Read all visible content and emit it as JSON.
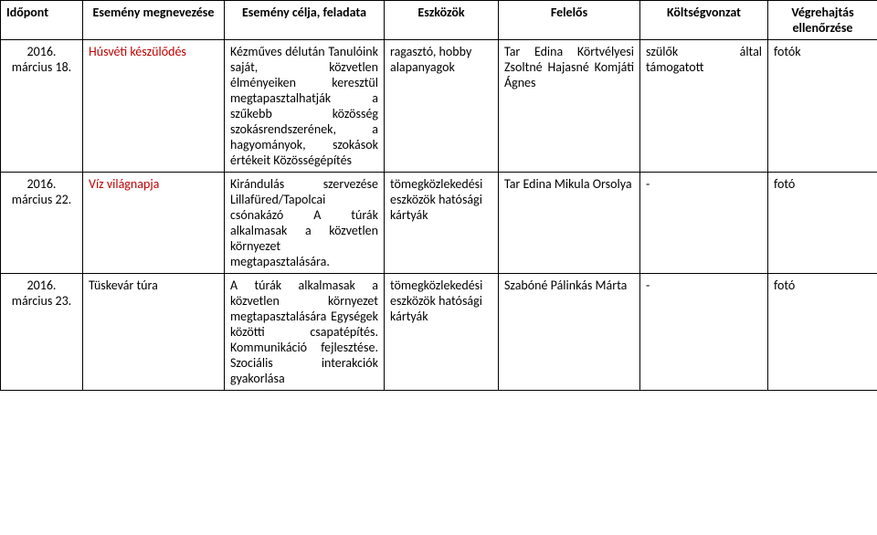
{
  "colors": {
    "red": "#c00000",
    "black": "#000000",
    "background": "#ffffff",
    "border": "#000000"
  },
  "typography": {
    "fontFamily": "Calibri, Arial, sans-serif",
    "fontSize": 14,
    "headerWeight": "bold"
  },
  "headers": {
    "time": "Időpont",
    "name": "Esemény megnevezése",
    "goal": "Esemény célja, feladata",
    "tools": "Eszközök",
    "responsible": "Felelős",
    "cost": "Költségvonzat",
    "check": "Végrehajtás ellenőrzése"
  },
  "rows": [
    {
      "time": "2016. március 18.",
      "name": "Húsvéti készülődés",
      "goal": "Kézműves délután Tanulóink saját, közvetlen élményeiken keresztül megtapasztalhatják a szűkebb közösség szokásrendszerének, a hagyományok, szokások értékeit Közösségépítés",
      "tools": "ragasztó, hobby alapanyagok",
      "responsible": "Tar Edina Körtvélyesi Zsoltné Hajasné Komjáti Ágnes",
      "cost": "szülők által támogatott",
      "check": "fotók",
      "highlight": true
    },
    {
      "time": "2016. március 22.",
      "name": "Víz világnapja",
      "goal": "Kirándulás szervezése Lillafüred/Tapolcai csónakázó A túrák alkalmasak a közvetlen környezet megtapasztalására.",
      "tools": "tömegközlekedési eszközök hatósági kártyák",
      "responsible": "Tar Edina Mikula Orsolya",
      "cost": "-",
      "check": "fotó",
      "highlight": true
    },
    {
      "time": "2016. március 23.",
      "name": "Tüskevár túra",
      "goal": "A túrák alkalmasak a közvetlen környezet megtapasztalására Egységek közötti csapatépítés. Kommunikáció fejlesztése. Szociális interakciók gyakorlása",
      "tools": "tömegközlekedési eszközök hatósági kártyák",
      "responsible": "Szabóné Pálinkás Márta",
      "cost": "-",
      "check": "fotó",
      "highlight": false
    }
  ]
}
